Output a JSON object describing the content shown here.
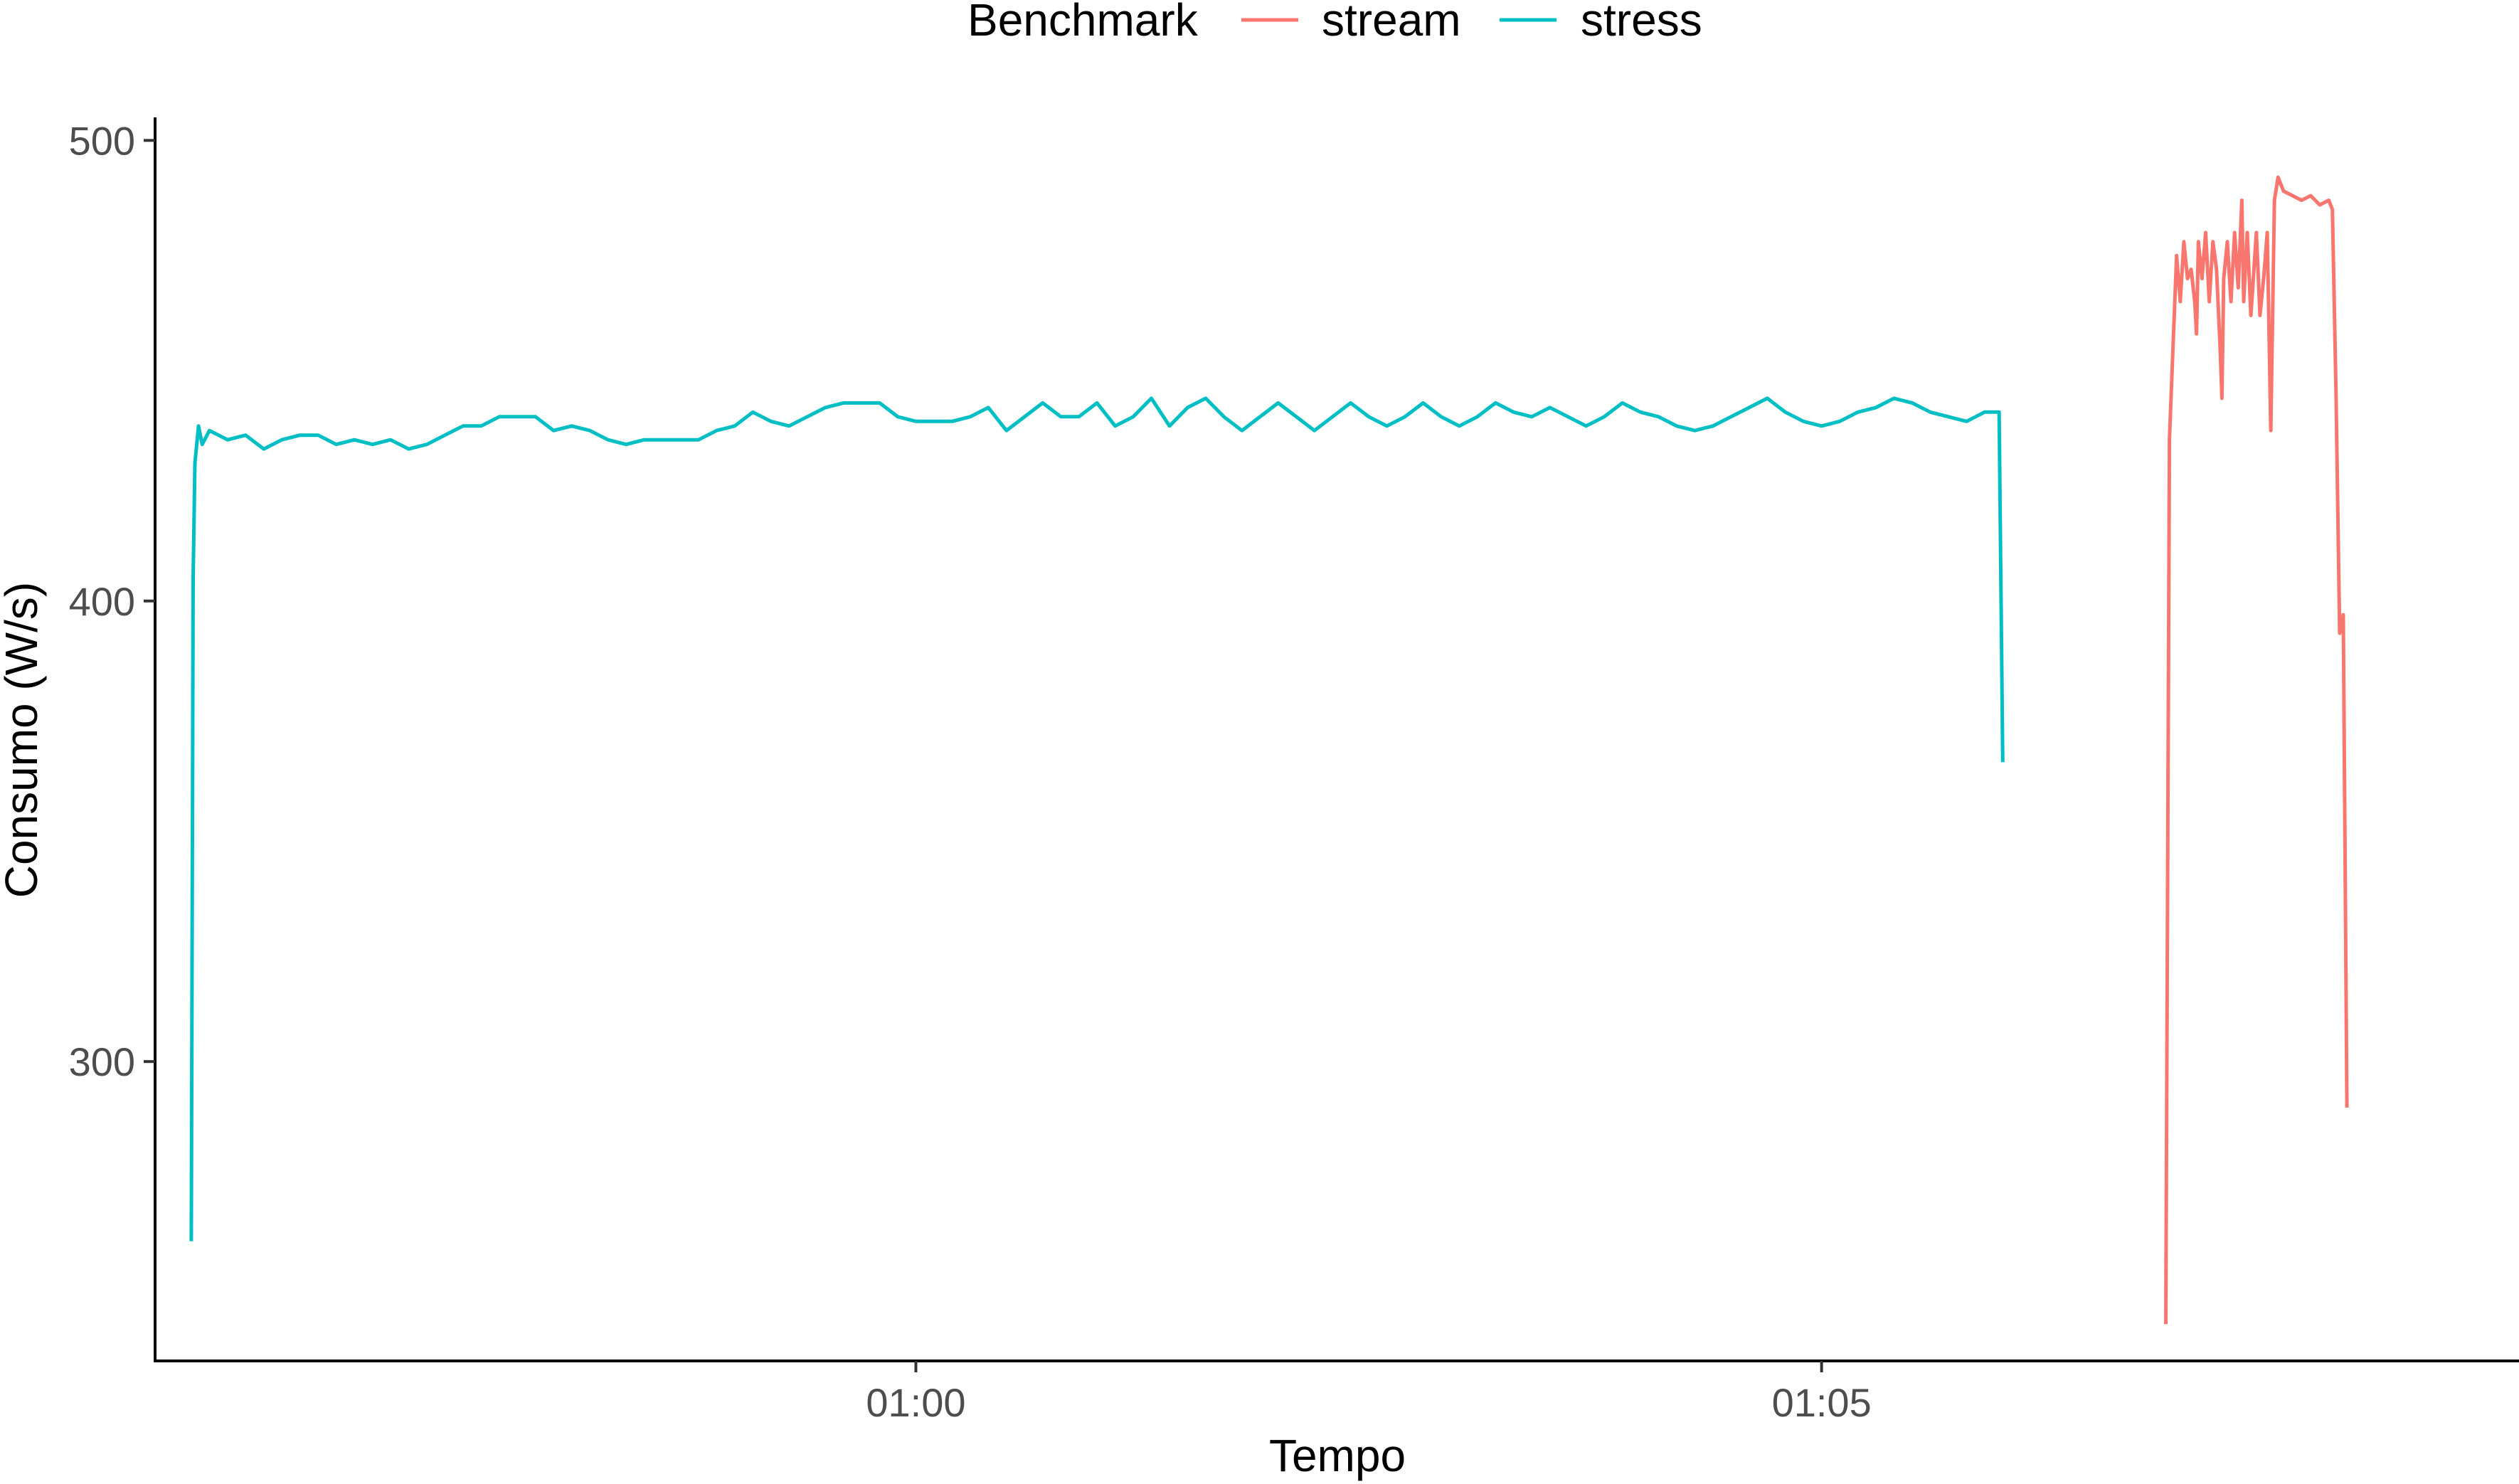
{
  "chart_data": {
    "type": "line",
    "title": "",
    "xlabel": "Tempo",
    "ylabel": "Consumo (W/s)",
    "ylim": [
      235,
      505
    ],
    "yticks": [
      300,
      400,
      500
    ],
    "xlim": [
      55.8,
      68.85
    ],
    "xticks": [
      {
        "value": 60,
        "label": "01:00"
      },
      {
        "value": 65,
        "label": "01:05"
      }
    ],
    "grid": false,
    "legend": {
      "title": "Benchmark",
      "placement": "top",
      "entries": [
        {
          "name": "stream",
          "color": "#F8766D"
        },
        {
          "name": "stress",
          "color": "#00BFC4"
        }
      ]
    },
    "series": [
      {
        "name": "stress",
        "color": "#00BFC4",
        "points": [
          [
            56.0,
            261
          ],
          [
            56.01,
            405
          ],
          [
            56.02,
            430
          ],
          [
            56.04,
            438
          ],
          [
            56.06,
            434
          ],
          [
            56.1,
            437
          ],
          [
            56.2,
            435
          ],
          [
            56.3,
            436
          ],
          [
            56.4,
            433
          ],
          [
            56.5,
            435
          ],
          [
            56.6,
            436
          ],
          [
            56.7,
            436
          ],
          [
            56.8,
            434
          ],
          [
            56.9,
            435
          ],
          [
            57.0,
            434
          ],
          [
            57.1,
            435
          ],
          [
            57.2,
            433
          ],
          [
            57.3,
            434
          ],
          [
            57.4,
            436
          ],
          [
            57.5,
            438
          ],
          [
            57.6,
            438
          ],
          [
            57.7,
            440
          ],
          [
            57.8,
            440
          ],
          [
            57.9,
            440
          ],
          [
            58.0,
            437
          ],
          [
            58.1,
            438
          ],
          [
            58.2,
            437
          ],
          [
            58.3,
            435
          ],
          [
            58.4,
            434
          ],
          [
            58.5,
            435
          ],
          [
            58.6,
            435
          ],
          [
            58.7,
            435
          ],
          [
            58.8,
            435
          ],
          [
            58.9,
            437
          ],
          [
            59.0,
            438
          ],
          [
            59.1,
            441
          ],
          [
            59.2,
            439
          ],
          [
            59.3,
            438
          ],
          [
            59.4,
            440
          ],
          [
            59.5,
            442
          ],
          [
            59.6,
            443
          ],
          [
            59.7,
            443
          ],
          [
            59.8,
            443
          ],
          [
            59.9,
            440
          ],
          [
            60.0,
            439
          ],
          [
            60.1,
            439
          ],
          [
            60.2,
            439
          ],
          [
            60.3,
            440
          ],
          [
            60.4,
            442
          ],
          [
            60.5,
            437
          ],
          [
            60.6,
            440
          ],
          [
            60.7,
            443
          ],
          [
            60.8,
            440
          ],
          [
            60.9,
            440
          ],
          [
            61.0,
            443
          ],
          [
            61.1,
            438
          ],
          [
            61.2,
            440
          ],
          [
            61.3,
            444
          ],
          [
            61.4,
            438
          ],
          [
            61.5,
            442
          ],
          [
            61.6,
            444
          ],
          [
            61.7,
            440
          ],
          [
            61.8,
            437
          ],
          [
            61.9,
            440
          ],
          [
            62.0,
            443
          ],
          [
            62.1,
            440
          ],
          [
            62.2,
            437
          ],
          [
            62.3,
            440
          ],
          [
            62.4,
            443
          ],
          [
            62.5,
            440
          ],
          [
            62.6,
            438
          ],
          [
            62.7,
            440
          ],
          [
            62.8,
            443
          ],
          [
            62.9,
            440
          ],
          [
            63.0,
            438
          ],
          [
            63.1,
            440
          ],
          [
            63.2,
            443
          ],
          [
            63.3,
            441
          ],
          [
            63.4,
            440
          ],
          [
            63.5,
            442
          ],
          [
            63.6,
            440
          ],
          [
            63.7,
            438
          ],
          [
            63.8,
            440
          ],
          [
            63.9,
            443
          ],
          [
            64.0,
            441
          ],
          [
            64.1,
            440
          ],
          [
            64.2,
            438
          ],
          [
            64.3,
            437
          ],
          [
            64.4,
            438
          ],
          [
            64.5,
            440
          ],
          [
            64.6,
            442
          ],
          [
            64.7,
            444
          ],
          [
            64.8,
            441
          ],
          [
            64.9,
            439
          ],
          [
            65.0,
            438
          ],
          [
            65.1,
            439
          ],
          [
            65.2,
            441
          ],
          [
            65.3,
            442
          ],
          [
            65.4,
            444
          ],
          [
            65.5,
            443
          ],
          [
            65.6,
            441
          ],
          [
            65.7,
            440
          ],
          [
            65.8,
            439
          ],
          [
            65.9,
            441
          ],
          [
            65.98,
            441
          ],
          [
            66.0,
            365
          ]
        ]
      },
      {
        "name": "stream",
        "color": "#F8766D",
        "points": [
          [
            66.9,
            243
          ],
          [
            66.92,
            435
          ],
          [
            66.94,
            455
          ],
          [
            66.96,
            475
          ],
          [
            66.98,
            465
          ],
          [
            67.0,
            478
          ],
          [
            67.02,
            470
          ],
          [
            67.04,
            472
          ],
          [
            67.06,
            465
          ],
          [
            67.07,
            458
          ],
          [
            67.08,
            478
          ],
          [
            67.1,
            470
          ],
          [
            67.12,
            480
          ],
          [
            67.14,
            465
          ],
          [
            67.16,
            478
          ],
          [
            67.18,
            472
          ],
          [
            67.2,
            455
          ],
          [
            67.21,
            444
          ],
          [
            67.22,
            470
          ],
          [
            67.24,
            478
          ],
          [
            67.26,
            465
          ],
          [
            67.28,
            480
          ],
          [
            67.3,
            468
          ],
          [
            67.32,
            487
          ],
          [
            67.33,
            465
          ],
          [
            67.35,
            480
          ],
          [
            67.37,
            462
          ],
          [
            67.4,
            480
          ],
          [
            67.42,
            462
          ],
          [
            67.44,
            470
          ],
          [
            67.46,
            480
          ],
          [
            67.48,
            437
          ],
          [
            67.5,
            487
          ],
          [
            67.52,
            492
          ],
          [
            67.55,
            489
          ],
          [
            67.6,
            488
          ],
          [
            67.65,
            487
          ],
          [
            67.7,
            488
          ],
          [
            67.75,
            486
          ],
          [
            67.8,
            487
          ],
          [
            67.82,
            485
          ],
          [
            67.84,
            445
          ],
          [
            67.86,
            393
          ],
          [
            67.88,
            397
          ],
          [
            67.9,
            290
          ]
        ]
      }
    ]
  }
}
